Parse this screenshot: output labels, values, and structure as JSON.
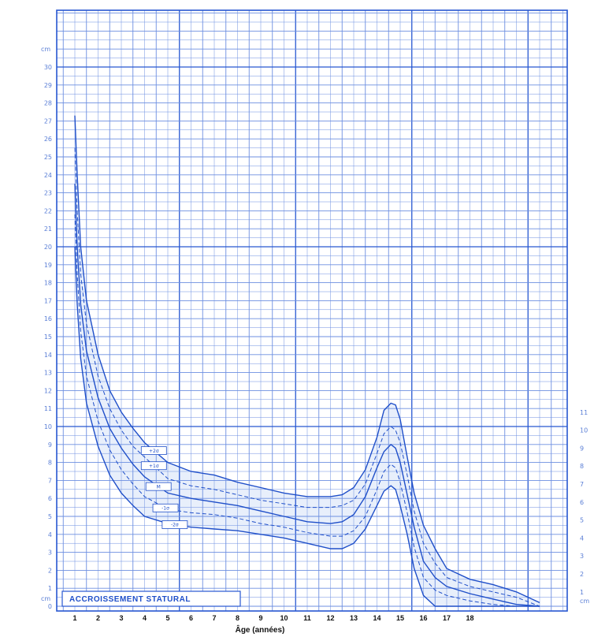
{
  "chart_data": {
    "type": "line",
    "title": "ACCROISSEMENT STATURAL",
    "xlabel": "Âge (années)",
    "ylabel": "cm",
    "xlim": [
      0.5,
      21.5
    ],
    "ylim": [
      0,
      31
    ],
    "x_ticks": [
      "1",
      "2",
      "3",
      "4",
      "5",
      "6",
      "7",
      "8",
      "9",
      "10",
      "11",
      "12",
      "13",
      "14",
      "15",
      "16",
      "17",
      "18"
    ],
    "y_ticks": [
      "1",
      "2",
      "3",
      "4",
      "5",
      "6",
      "7",
      "8",
      "9",
      "10",
      "11",
      "12",
      "13",
      "14",
      "15",
      "16",
      "17",
      "18",
      "19",
      "20",
      "21",
      "22",
      "23",
      "24",
      "25",
      "26",
      "27",
      "28",
      "29",
      "30"
    ],
    "y_unit_label": "cm",
    "right_axis_ticks": [
      "1",
      "2",
      "3",
      "4",
      "5",
      "6",
      "7",
      "8",
      "9",
      "10",
      "11"
    ],
    "right_axis_unit": "cm",
    "grid": true,
    "series": [
      {
        "name": "+2σ",
        "style": "solid",
        "x": [
          1.0,
          1.1,
          1.25,
          1.5,
          2,
          2.5,
          3,
          3.5,
          4,
          5,
          6,
          7,
          8,
          9,
          10,
          11,
          12,
          12.5,
          13,
          13.5,
          14,
          14.3,
          14.6,
          14.8,
          15,
          15.3,
          15.6,
          16,
          16.5,
          17,
          18,
          19,
          20,
          21
        ],
        "y": [
          27.3,
          24,
          20,
          17,
          14,
          12,
          10.8,
          9.9,
          9.1,
          8,
          7.5,
          7.3,
          6.9,
          6.6,
          6.3,
          6.1,
          6.1,
          6.2,
          6.6,
          7.6,
          9.4,
          10.9,
          11.3,
          11.2,
          10.4,
          8.3,
          6.3,
          4.5,
          3.2,
          2.1,
          1.5,
          1.2,
          0.8,
          0.2
        ]
      },
      {
        "name": "+1σ",
        "style": "dashed",
        "x": [
          1.0,
          1.1,
          1.25,
          1.5,
          2,
          2.5,
          3,
          3.5,
          4,
          5,
          6,
          7,
          8,
          9,
          10,
          11,
          12,
          12.5,
          13,
          13.5,
          14,
          14.3,
          14.6,
          14.8,
          15,
          15.3,
          15.6,
          16,
          16.5,
          17,
          18,
          19,
          20,
          21
        ],
        "y": [
          25.5,
          22,
          18.5,
          15.7,
          12.8,
          11,
          9.8,
          8.9,
          8.3,
          7.1,
          6.7,
          6.5,
          6.2,
          5.9,
          5.7,
          5.5,
          5.5,
          5.6,
          5.9,
          6.8,
          8.5,
          9.6,
          10,
          9.8,
          9.1,
          7.3,
          5.3,
          3.5,
          2.4,
          1.6,
          1.1,
          0.8,
          0.5,
          0
        ]
      },
      {
        "name": "M",
        "style": "solid",
        "x": [
          1.0,
          1.1,
          1.25,
          1.5,
          2,
          2.5,
          3,
          3.5,
          4,
          5,
          6,
          7,
          8,
          9,
          10,
          11,
          12,
          12.5,
          13,
          13.5,
          14,
          14.3,
          14.6,
          14.8,
          15,
          15.3,
          15.6,
          16,
          16.5,
          17,
          18,
          19,
          20,
          21
        ],
        "y": [
          23.5,
          20,
          16.8,
          14.2,
          11.6,
          9.9,
          8.8,
          7.9,
          7.2,
          6.3,
          6,
          5.8,
          5.6,
          5.3,
          5,
          4.7,
          4.6,
          4.7,
          5.1,
          6.1,
          7.7,
          8.6,
          9,
          8.8,
          8,
          6.2,
          4.4,
          2.5,
          1.6,
          1.1,
          0.7,
          0.4,
          0.1,
          0
        ]
      },
      {
        "name": "-1σ",
        "style": "dashed",
        "x": [
          1.0,
          1.1,
          1.25,
          1.5,
          2,
          2.5,
          3,
          3.5,
          4,
          5,
          6,
          7,
          8,
          9,
          10,
          11,
          12,
          12.5,
          13,
          13.5,
          14,
          14.3,
          14.6,
          14.8,
          15,
          15.3,
          15.6,
          16,
          16.5,
          17,
          18,
          19,
          20,
          21
        ],
        "y": [
          21.8,
          18.5,
          15.3,
          12.8,
          10.3,
          8.7,
          7.6,
          6.8,
          6.1,
          5.4,
          5.2,
          5.1,
          4.9,
          4.6,
          4.4,
          4.1,
          3.9,
          3.9,
          4.2,
          5,
          6.5,
          7.5,
          7.9,
          7.7,
          6.9,
          5.2,
          3.3,
          1.6,
          0.9,
          0.6,
          0.3,
          0.1,
          0,
          0
        ]
      },
      {
        "name": "-2σ",
        "style": "solid",
        "x": [
          1.0,
          1.1,
          1.25,
          1.5,
          2,
          2.5,
          3,
          3.5,
          4,
          5,
          6,
          7,
          8,
          9,
          10,
          11,
          12,
          12.5,
          13,
          13.5,
          14,
          14.3,
          14.6,
          14.8,
          15,
          15.3,
          15.6,
          16,
          16.5,
          17,
          18,
          19,
          20,
          21
        ],
        "y": [
          20,
          16.8,
          13.8,
          11.3,
          8.9,
          7.3,
          6.3,
          5.6,
          5,
          4.6,
          4.4,
          4.3,
          4.2,
          4,
          3.8,
          3.5,
          3.2,
          3.2,
          3.5,
          4.3,
          5.6,
          6.4,
          6.7,
          6.5,
          5.6,
          4,
          2.1,
          0.6,
          0,
          0,
          0,
          0,
          0,
          0
        ]
      }
    ],
    "curve_labels": [
      "+2σ",
      "+1σ",
      "M",
      "-1σ",
      "-2σ"
    ],
    "colors": {
      "grid": "#6d8fe0",
      "grid_major": "#2757d1",
      "curve": "#1f4fc9",
      "band": "#e4ecfa",
      "ticks": "#5b7fd6",
      "text": "#111111"
    }
  }
}
